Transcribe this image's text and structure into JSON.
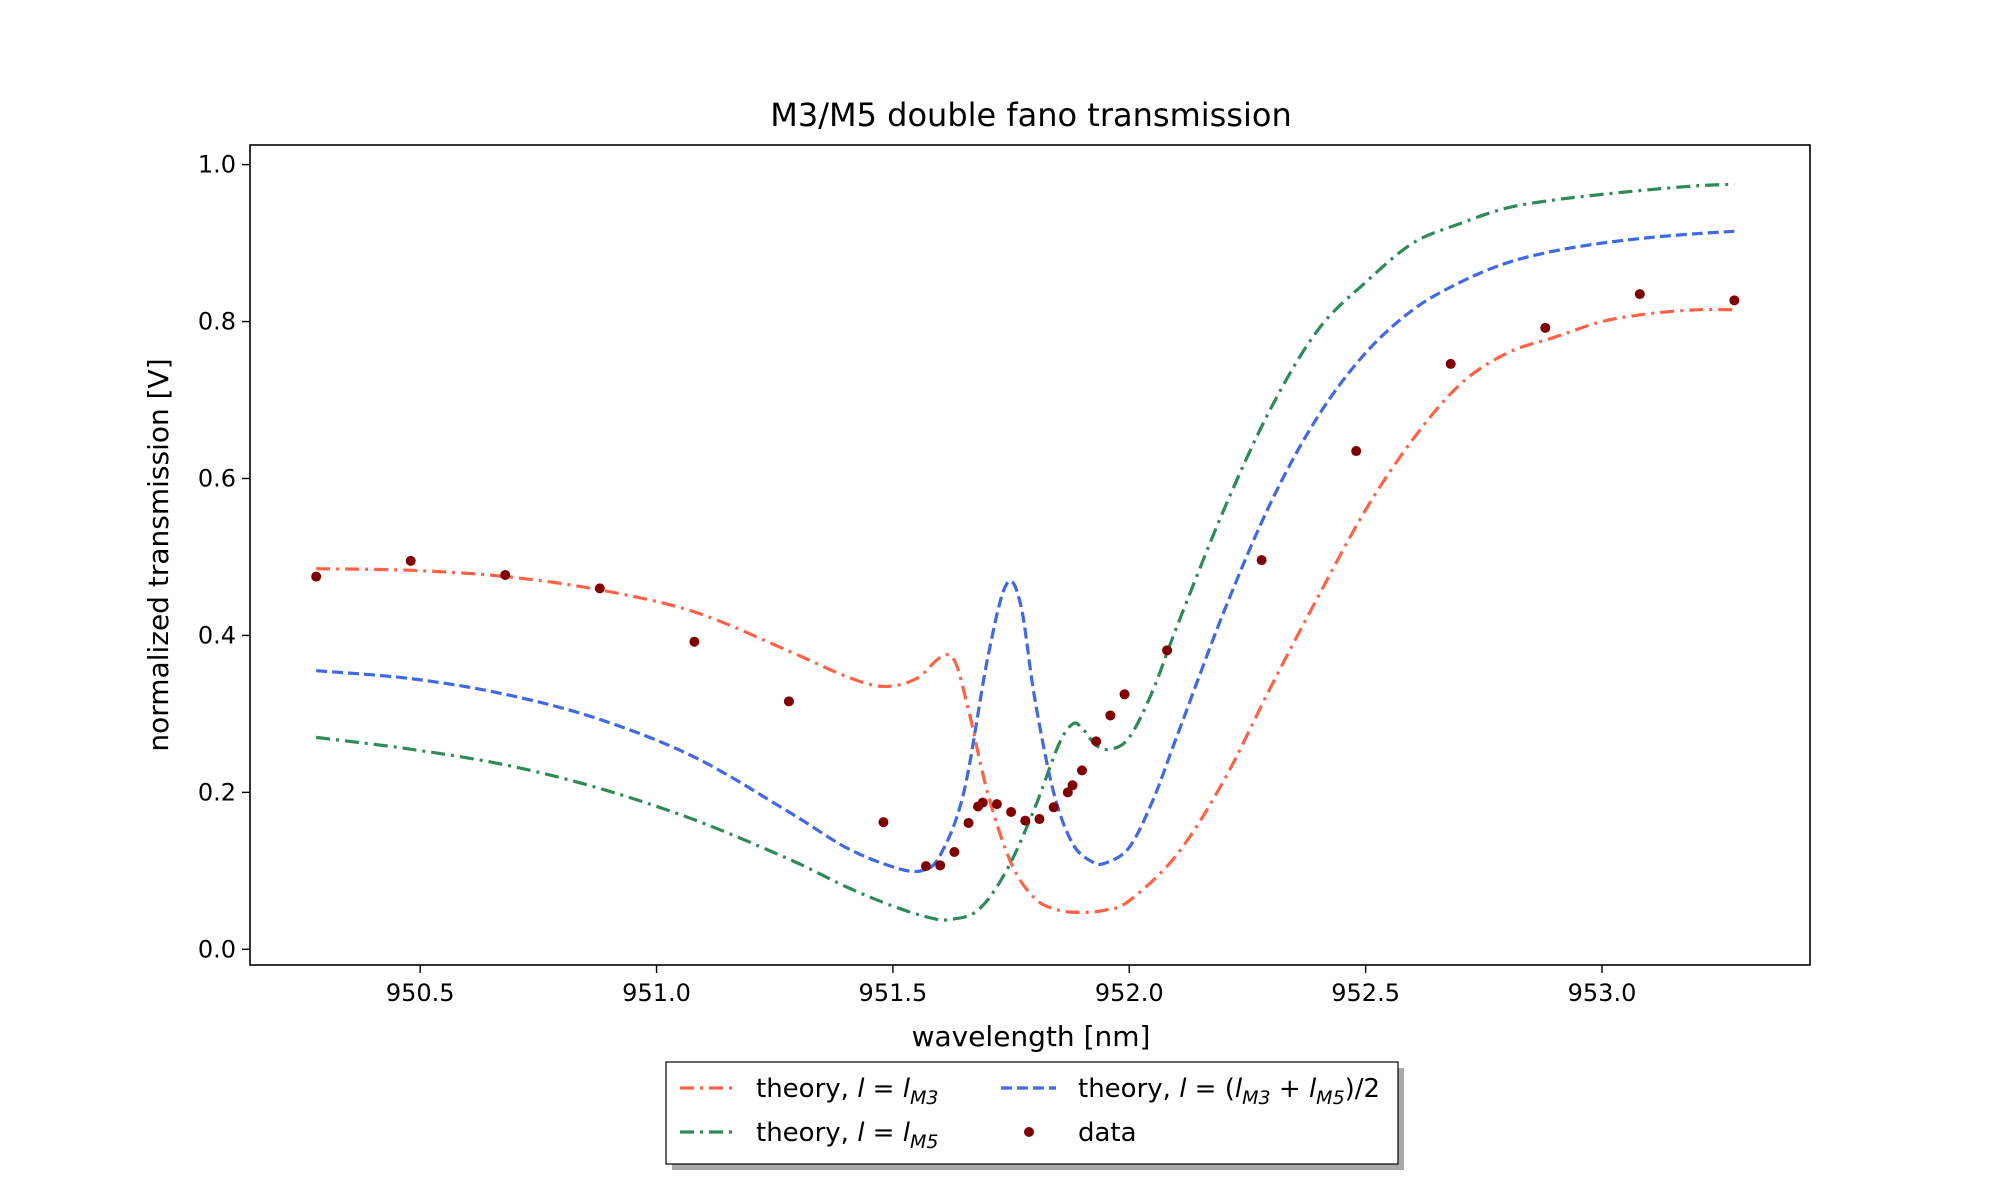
{
  "chart_data": {
    "type": "line",
    "title": "M3/M5 double fano transmission",
    "xlabel": "wavelength [nm]",
    "ylabel": "normalized transmission [V]",
    "xlim": [
      950.14,
      953.44
    ],
    "ylim": [
      -0.02,
      1.025
    ],
    "xticks": [
      950.5,
      951.0,
      951.5,
      952.0,
      952.5,
      953.0
    ],
    "xtick_labels": [
      "950.5",
      "951.0",
      "951.5",
      "952.0",
      "952.5",
      "953.0"
    ],
    "yticks": [
      0.0,
      0.2,
      0.4,
      0.6,
      0.8,
      1.0
    ],
    "ytick_labels": [
      "0.0",
      "0.2",
      "0.4",
      "0.6",
      "0.8",
      "1.0"
    ],
    "grid": false,
    "legend_position": "bottom-center-outside",
    "series": [
      {
        "name": "theory, l = l_M3",
        "style": "dashdot",
        "color": "#ff6347",
        "x": [
          950.28,
          950.48,
          950.68,
          950.88,
          951.08,
          951.28,
          951.4,
          951.48,
          951.55,
          951.6,
          951.63,
          951.66,
          951.7,
          951.75,
          951.8,
          951.85,
          951.9,
          951.95,
          952.0,
          952.1,
          952.2,
          952.3,
          952.4,
          952.5,
          952.6,
          952.7,
          952.8,
          952.9,
          953.0,
          953.1,
          953.2,
          953.28
        ],
        "values": [
          0.485,
          0.483,
          0.475,
          0.458,
          0.43,
          0.38,
          0.348,
          0.335,
          0.345,
          0.372,
          0.368,
          0.305,
          0.2,
          0.11,
          0.065,
          0.05,
          0.047,
          0.05,
          0.062,
          0.12,
          0.215,
          0.335,
          0.45,
          0.56,
          0.65,
          0.72,
          0.76,
          0.78,
          0.8,
          0.81,
          0.815,
          0.815
        ]
      },
      {
        "name": "theory, l = l_M5",
        "style": "dashdot",
        "color": "#2e8b57",
        "x": [
          950.28,
          950.48,
          950.68,
          950.88,
          951.08,
          951.28,
          951.4,
          951.5,
          951.58,
          951.62,
          951.68,
          951.74,
          951.8,
          951.85,
          951.88,
          951.9,
          951.93,
          951.96,
          952.0,
          952.05,
          952.1,
          952.2,
          952.3,
          952.4,
          952.5,
          952.6,
          952.7,
          952.8,
          952.9,
          953.0,
          953.1,
          953.2,
          953.28
        ],
        "values": [
          0.27,
          0.255,
          0.235,
          0.205,
          0.165,
          0.115,
          0.08,
          0.055,
          0.04,
          0.038,
          0.05,
          0.1,
          0.18,
          0.26,
          0.287,
          0.282,
          0.26,
          0.255,
          0.27,
          0.33,
          0.41,
          0.56,
          0.69,
          0.79,
          0.85,
          0.9,
          0.925,
          0.945,
          0.955,
          0.962,
          0.968,
          0.973,
          0.975
        ]
      },
      {
        "name": "theory, l = (l_M3 + l_M5)/2",
        "style": "dashed",
        "color": "#4169e1",
        "x": [
          950.28,
          950.48,
          950.68,
          950.88,
          951.08,
          951.28,
          951.4,
          951.5,
          951.56,
          951.6,
          951.65,
          951.7,
          951.74,
          951.77,
          951.8,
          951.84,
          951.88,
          951.92,
          951.95,
          952.0,
          952.05,
          952.1,
          952.2,
          952.3,
          952.4,
          952.5,
          952.6,
          952.7,
          952.8,
          952.9,
          953.0,
          953.1,
          953.2,
          953.28
        ],
        "values": [
          0.355,
          0.345,
          0.325,
          0.293,
          0.245,
          0.175,
          0.13,
          0.105,
          0.1,
          0.12,
          0.2,
          0.37,
          0.465,
          0.44,
          0.32,
          0.2,
          0.135,
          0.112,
          0.11,
          0.13,
          0.19,
          0.27,
          0.43,
          0.57,
          0.68,
          0.76,
          0.815,
          0.85,
          0.875,
          0.89,
          0.9,
          0.907,
          0.912,
          0.915
        ]
      },
      {
        "name": "data",
        "style": "points",
        "color": "#800000",
        "x": [
          950.28,
          950.48,
          950.68,
          950.88,
          951.08,
          951.28,
          951.48,
          951.57,
          951.6,
          951.63,
          951.66,
          951.68,
          951.69,
          951.72,
          951.75,
          951.78,
          951.81,
          951.84,
          951.87,
          951.88,
          951.9,
          951.93,
          951.96,
          951.99,
          952.08,
          952.28,
          952.48,
          952.68,
          952.88,
          953.08,
          953.28
        ],
        "values": [
          0.475,
          0.495,
          0.477,
          0.46,
          0.392,
          0.316,
          0.162,
          0.106,
          0.107,
          0.124,
          0.161,
          0.182,
          0.187,
          0.185,
          0.175,
          0.164,
          0.166,
          0.181,
          0.2,
          0.209,
          0.228,
          0.265,
          0.298,
          0.325,
          0.381,
          0.496,
          0.635,
          0.746,
          0.792,
          0.835,
          0.827
        ]
      }
    ]
  },
  "legend": {
    "items": [
      {
        "prefix": "theory, ",
        "var": "l",
        "eq": " = ",
        "rhs_var": "l",
        "rhs_sub": "M3"
      },
      {
        "prefix": "theory, ",
        "var": "l",
        "eq": " = ",
        "rhs_var": "l",
        "rhs_sub": "M5"
      },
      {
        "prefix": "theory, ",
        "var": "l",
        "eq": " = (",
        "rhs_var": "l",
        "rhs_sub": "M3",
        "plus": " + ",
        "rhs2_var": "l",
        "rhs2_sub": "M5",
        "tail": ")/2"
      },
      {
        "label": "data"
      }
    ]
  }
}
